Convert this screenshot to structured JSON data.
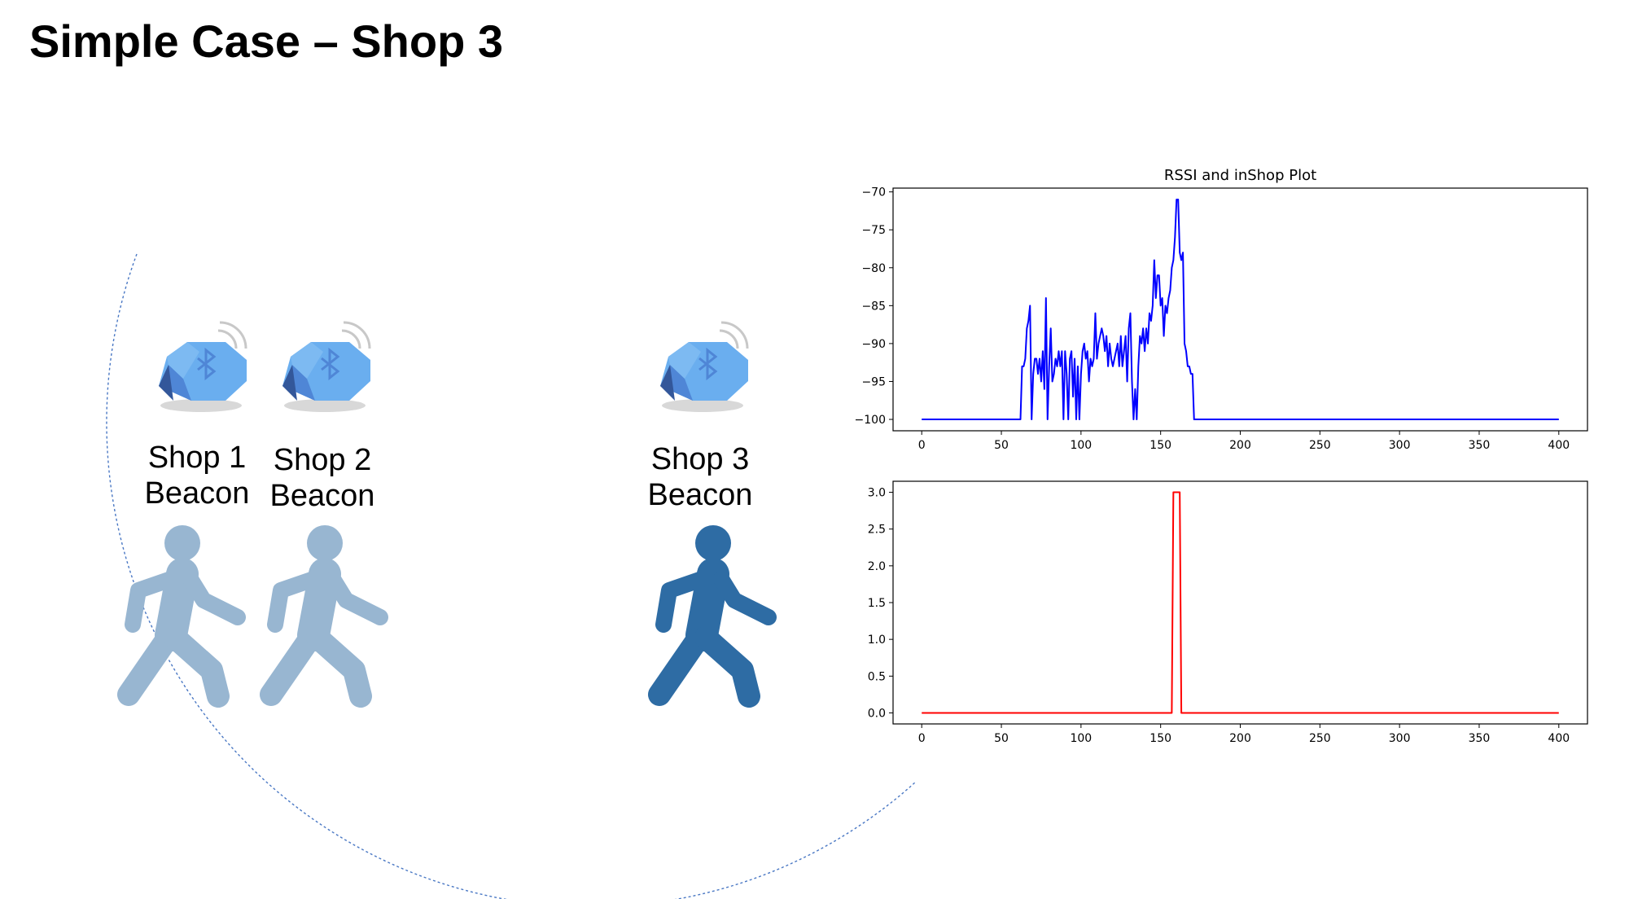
{
  "slide": {
    "title": "Simple Case – Shop 3"
  },
  "scene": {
    "beacons": [
      {
        "label_line1": "Shop 1",
        "label_line2": "Beacon"
      },
      {
        "label_line1": "Shop 2",
        "label_line2": "Beacon"
      },
      {
        "label_line1": "Shop 3",
        "label_line2": "Beacon"
      }
    ],
    "walker_colors": {
      "inactive": "#98b6d1",
      "active": "#2e6ca4"
    },
    "beacon_colors": {
      "light": "#6aaeef",
      "mid": "#4f86d6",
      "dark": "#33579a"
    },
    "range_arc_color": "#4a78c4"
  },
  "chart_data": [
    {
      "type": "line",
      "title": "RSSI and inShop Plot",
      "xlabel": "",
      "ylabel": "",
      "xlim": [
        -18,
        418
      ],
      "ylim": [
        -101.5,
        -69.5
      ],
      "xticks": [
        0,
        50,
        100,
        150,
        200,
        250,
        300,
        350,
        400
      ],
      "yticks": [
        -70,
        -75,
        -80,
        -85,
        -90,
        -95,
        -100
      ],
      "grid": false,
      "color": "#0000ff",
      "series": [
        {
          "points": [
            [
              0,
              -100
            ],
            [
              62,
              -100
            ],
            [
              63,
              -93
            ],
            [
              64,
              -93
            ],
            [
              65,
              -92
            ],
            [
              66,
              -88
            ],
            [
              67,
              -87
            ],
            [
              68,
              -85
            ],
            [
              69,
              -100
            ],
            [
              70,
              -94
            ],
            [
              71,
              -92
            ],
            [
              72,
              -92
            ],
            [
              73,
              -94
            ],
            [
              74,
              -92
            ],
            [
              75,
              -95
            ],
            [
              76,
              -91
            ],
            [
              77,
              -96
            ],
            [
              78,
              -84
            ],
            [
              79,
              -100
            ],
            [
              80,
              -93
            ],
            [
              81,
              -88
            ],
            [
              82,
              -95
            ],
            [
              83,
              -94
            ],
            [
              84,
              -92
            ],
            [
              85,
              -93
            ],
            [
              86,
              -91
            ],
            [
              87,
              -93
            ],
            [
              88,
              -91
            ],
            [
              89,
              -100
            ],
            [
              90,
              -91
            ],
            [
              91,
              -94
            ],
            [
              92,
              -100
            ],
            [
              93,
              -92
            ],
            [
              94,
              -91
            ],
            [
              95,
              -97
            ],
            [
              96,
              -92
            ],
            [
              97,
              -100
            ],
            [
              98,
              -93
            ],
            [
              99,
              -100
            ],
            [
              100,
              -94
            ],
            [
              101,
              -91
            ],
            [
              102,
              -90
            ],
            [
              103,
              -92
            ],
            [
              104,
              -91
            ],
            [
              105,
              -95
            ],
            [
              106,
              -92
            ],
            [
              107,
              -93
            ],
            [
              108,
              -92
            ],
            [
              109,
              -86
            ],
            [
              110,
              -92
            ],
            [
              111,
              -90
            ],
            [
              112,
              -89
            ],
            [
              113,
              -88
            ],
            [
              114,
              -89
            ],
            [
              115,
              -91
            ],
            [
              116,
              -89
            ],
            [
              117,
              -93
            ],
            [
              118,
              -90
            ],
            [
              119,
              -92
            ],
            [
              120,
              -93
            ],
            [
              121,
              -92
            ],
            [
              122,
              -91
            ],
            [
              123,
              -90
            ],
            [
              124,
              -93
            ],
            [
              125,
              -89
            ],
            [
              126,
              -93
            ],
            [
              127,
              -91
            ],
            [
              128,
              -89
            ],
            [
              129,
              -95
            ],
            [
              130,
              -88
            ],
            [
              131,
              -86
            ],
            [
              132,
              -95
            ],
            [
              133,
              -100
            ],
            [
              134,
              -96
            ],
            [
              135,
              -100
            ],
            [
              136,
              -93
            ],
            [
              137,
              -89
            ],
            [
              138,
              -90
            ],
            [
              139,
              -88
            ],
            [
              140,
              -91
            ],
            [
              141,
              -88
            ],
            [
              142,
              -90
            ],
            [
              143,
              -86
            ],
            [
              144,
              -87
            ],
            [
              145,
              -85
            ],
            [
              146,
              -79
            ],
            [
              147,
              -84
            ],
            [
              148,
              -81
            ],
            [
              149,
              -81
            ],
            [
              150,
              -85
            ],
            [
              151,
              -84
            ],
            [
              152,
              -89
            ],
            [
              153,
              -85
            ],
            [
              154,
              -86
            ],
            [
              155,
              -84
            ],
            [
              156,
              -83
            ],
            [
              157,
              -80
            ],
            [
              158,
              -79
            ],
            [
              159,
              -76
            ],
            [
              160,
              -71
            ],
            [
              161,
              -71
            ],
            [
              162,
              -78
            ],
            [
              163,
              -79
            ],
            [
              164,
              -78
            ],
            [
              165,
              -90
            ],
            [
              166,
              -91
            ],
            [
              167,
              -93
            ],
            [
              168,
              -93
            ],
            [
              169,
              -94
            ],
            [
              170,
              -94
            ],
            [
              171,
              -100
            ],
            [
              400,
              -100
            ]
          ]
        }
      ]
    },
    {
      "type": "line",
      "title": "",
      "xlabel": "",
      "ylabel": "",
      "xlim": [
        -18,
        418
      ],
      "ylim": [
        -0.15,
        3.15
      ],
      "xticks": [
        0,
        50,
        100,
        150,
        200,
        250,
        300,
        350,
        400
      ],
      "yticks": [
        0.0,
        0.5,
        1.0,
        1.5,
        2.0,
        2.5,
        3.0
      ],
      "grid": false,
      "color": "#ff0000",
      "series": [
        {
          "points": [
            [
              0,
              0
            ],
            [
              157,
              0
            ],
            [
              158,
              3
            ],
            [
              162,
              3
            ],
            [
              163,
              0
            ],
            [
              400,
              0
            ]
          ]
        }
      ]
    }
  ]
}
